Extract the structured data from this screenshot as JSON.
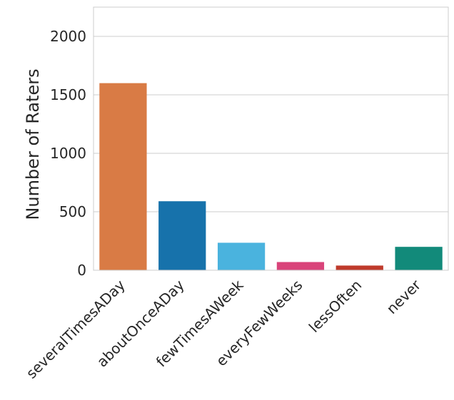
{
  "chart_data": {
    "type": "bar",
    "title": "",
    "xlabel": "",
    "ylabel": "Number of Raters",
    "categories": [
      "severalTimesADay",
      "aboutOnceADay",
      "fewTimesAWeek",
      "everyFewWeeks",
      "lessOften",
      "never"
    ],
    "values": [
      1600,
      590,
      235,
      70,
      40,
      200
    ],
    "colors": [
      "#d97b45",
      "#1772ab",
      "#4ab3de",
      "#d9447a",
      "#bf3a2b",
      "#128a7a"
    ],
    "ylim": [
      0,
      2250
    ],
    "yticks": [
      0,
      500,
      1000,
      1500,
      2000
    ],
    "grid": true,
    "legend": "none"
  }
}
